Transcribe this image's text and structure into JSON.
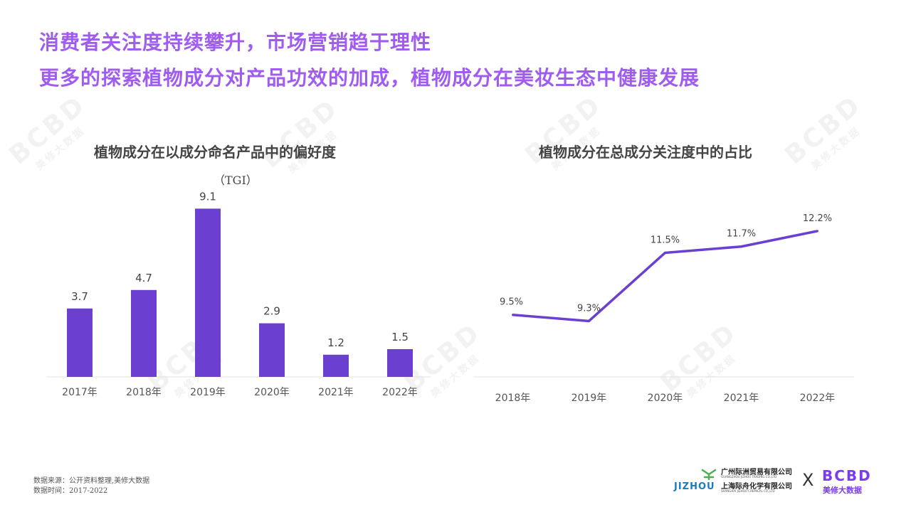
{
  "headline": {
    "line1": "消费者关注度持续攀升，市场营销趋于理性",
    "line2": "更多的探索植物成分对产品功效的加成，植物成分在美妆生态中健康发展"
  },
  "watermark": {
    "brand": "BCBD",
    "cn": "美修大数据"
  },
  "chart_data": [
    {
      "type": "bar",
      "title": "植物成分在以成分命名产品中的偏好度",
      "subtitle": "（TGI）",
      "categories": [
        "2017年",
        "2018年",
        "2019年",
        "2020年",
        "2021年",
        "2022年"
      ],
      "values": [
        3.7,
        4.7,
        9.1,
        2.9,
        1.2,
        1.5
      ],
      "data_labels": [
        "3.7",
        "4.7",
        "9.1",
        "2.9",
        "1.2",
        "1.5"
      ],
      "ylim": [
        0,
        10
      ],
      "color": "#6b3fd0",
      "grid": false
    },
    {
      "type": "line",
      "title": "植物成分在总成分关注度中的占比",
      "categories": [
        "2018年",
        "2019年",
        "2020年",
        "2021年",
        "2022年"
      ],
      "values": [
        9.5,
        9.3,
        11.5,
        11.7,
        12.2
      ],
      "data_labels": [
        "9.5%",
        "9.3%",
        "11.5%",
        "11.7%",
        "12.2%"
      ],
      "ylim": [
        7.5,
        13
      ],
      "color": "#6b3fd0",
      "grid": false
    }
  ],
  "footer": {
    "source": "数据来源：公开资料整理,美修大数据",
    "time": "数据时间：2017-2022"
  },
  "logos": {
    "company1_cn": "广州际洲贸易有限公司",
    "company1_en": "GUANGZHOU JIZHOU TRADING CO.,LTD",
    "company2_cn": "上海际舟化学有限公司",
    "company2_en": "SHANGHAI JIZHOU CHEMICAL CO.,LTD",
    "jizhou": "JIZHOU",
    "times": "X",
    "bcbd": "BCBD",
    "bcbd_cn": "美修大数据"
  }
}
